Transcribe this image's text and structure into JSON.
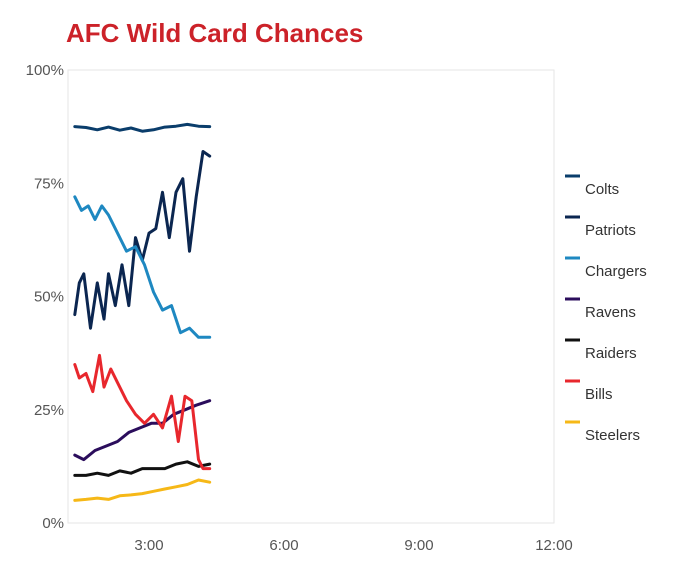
{
  "colors": {
    "title": "#cc2229",
    "plot_border": "#e6e6e6",
    "Colts": "#0a3d6b",
    "Patriots": "#0b2650",
    "Chargers": "#1e88c1",
    "Ravens": "#2b0d5c",
    "Raiders": "#111111",
    "Bills": "#e8272d",
    "Steelers": "#f6b817"
  },
  "chart_data": {
    "type": "line",
    "title": "AFC Wild Card Chances",
    "xlabel": "",
    "ylabel": "",
    "xlim": [
      1.2,
      12.0
    ],
    "ylim": [
      0,
      100
    ],
    "x_tick_values": [
      3,
      6,
      9,
      12
    ],
    "x_tick_labels": [
      "3:00",
      "6:00",
      "9:00",
      "12:00"
    ],
    "y_tick_values": [
      0,
      25,
      50,
      75,
      100
    ],
    "y_tick_labels": [
      "0%",
      "25%",
      "50%",
      "75%",
      "100%"
    ],
    "grid": false,
    "legend_position": "right",
    "series": [
      {
        "name": "Colts",
        "x": [
          1.35,
          1.6,
          1.85,
          2.1,
          2.35,
          2.6,
          2.85,
          3.1,
          3.35,
          3.6,
          3.85,
          4.1,
          4.35
        ],
        "y": [
          87.5,
          87.3,
          86.8,
          87.4,
          86.7,
          87.2,
          86.5,
          86.8,
          87.4,
          87.6,
          88.0,
          87.6,
          87.5
        ]
      },
      {
        "name": "Patriots",
        "x": [
          1.35,
          1.45,
          1.55,
          1.7,
          1.85,
          2.0,
          2.1,
          2.25,
          2.4,
          2.55,
          2.7,
          2.85,
          3.0,
          3.15,
          3.3,
          3.45,
          3.6,
          3.75,
          3.9,
          4.05,
          4.2,
          4.35
        ],
        "y": [
          46,
          53,
          55,
          43,
          53,
          45,
          55,
          48,
          57,
          48,
          63,
          58,
          64,
          65,
          73,
          63,
          73,
          76,
          60,
          72,
          82,
          81
        ]
      },
      {
        "name": "Chargers",
        "x": [
          1.35,
          1.5,
          1.65,
          1.8,
          1.95,
          2.1,
          2.3,
          2.5,
          2.7,
          2.9,
          3.1,
          3.3,
          3.5,
          3.7,
          3.9,
          4.1,
          4.35
        ],
        "y": [
          72,
          69,
          70,
          67,
          70,
          68,
          64,
          60,
          61,
          57,
          51,
          47,
          48,
          42,
          43,
          41,
          41
        ]
      },
      {
        "name": "Ravens",
        "x": [
          1.35,
          1.55,
          1.8,
          2.05,
          2.3,
          2.55,
          2.8,
          3.05,
          3.3,
          3.55,
          3.8,
          4.05,
          4.35
        ],
        "y": [
          15,
          14,
          16,
          17,
          18,
          20,
          21,
          22,
          22,
          24,
          25,
          26,
          27
        ]
      },
      {
        "name": "Raiders",
        "x": [
          1.35,
          1.6,
          1.85,
          2.1,
          2.35,
          2.6,
          2.85,
          3.1,
          3.35,
          3.6,
          3.85,
          4.1,
          4.35
        ],
        "y": [
          10.5,
          10.5,
          11,
          10.5,
          11.5,
          11,
          12,
          12,
          12,
          13,
          13.5,
          12.5,
          13
        ]
      },
      {
        "name": "Bills",
        "x": [
          1.35,
          1.45,
          1.6,
          1.75,
          1.9,
          2.0,
          2.15,
          2.3,
          2.5,
          2.7,
          2.9,
          3.1,
          3.3,
          3.5,
          3.65,
          3.8,
          3.95,
          4.1,
          4.2,
          4.35
        ],
        "y": [
          35,
          32,
          33,
          29,
          37,
          30,
          34,
          31,
          27,
          24,
          22,
          24,
          21,
          28,
          18,
          28,
          27,
          14,
          12,
          12
        ]
      },
      {
        "name": "Steelers",
        "x": [
          1.35,
          1.6,
          1.85,
          2.1,
          2.35,
          2.6,
          2.85,
          3.1,
          3.35,
          3.6,
          3.85,
          4.1,
          4.35
        ],
        "y": [
          5,
          5.2,
          5.5,
          5.2,
          6,
          6.2,
          6.5,
          7,
          7.5,
          8,
          8.5,
          9.5,
          9
        ]
      }
    ]
  }
}
